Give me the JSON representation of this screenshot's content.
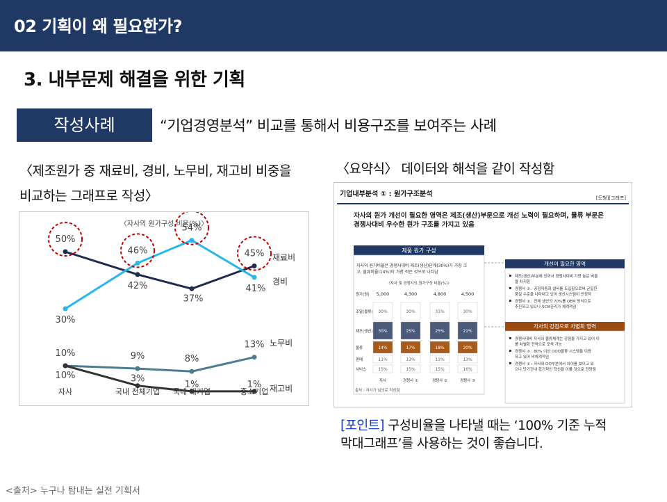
{
  "header": {
    "title": "02 기획이 왜 필요한가?"
  },
  "section_title": "3. 내부문제 해결을 위한 기획",
  "example": {
    "tag_label": "작성사례",
    "description": "“기업경영분석” 비교를 통해서 비용구조를 보여주는 사례"
  },
  "left": {
    "caption_line1": "〈제조원가 중 재료비, 경비, 노무비, 재고비 비중을",
    "caption_line2": "비교하는 그래프로 작성〉"
  },
  "right": {
    "caption": "〈요약식〉 데이터와 해석을 같이 작성함"
  },
  "chart_data": {
    "type": "line",
    "title": "〈자사의 원가구성 비율(%)〉",
    "categories": [
      "자사",
      "국내 전체기업",
      "국내 대기업",
      "중소기업"
    ],
    "series": [
      {
        "name": "재료비",
        "values": [
          50,
          42,
          37,
          45
        ],
        "color": "#1f2d4d",
        "point_labels": [
          "50%",
          "42%",
          "37%",
          "45%"
        ]
      },
      {
        "name": "경비",
        "values": [
          30,
          46,
          54,
          41
        ],
        "color": "#29b6e8",
        "point_labels": [
          "30%",
          "46%",
          "54%",
          "41%"
        ]
      },
      {
        "name": "노무비",
        "values": [
          10,
          9,
          8,
          13
        ],
        "color": "#4d7b8f",
        "point_labels": [
          "10%",
          "9%",
          "8%",
          "13%"
        ]
      },
      {
        "name": "재고비",
        "values": [
          10,
          3,
          1,
          1
        ],
        "color": "#333333",
        "point_labels": [
          "10%",
          "3%",
          "1%",
          "1%"
        ]
      }
    ],
    "highlight_color": "#c00000"
  },
  "doc": {
    "header_title": "기업내부분석 ① : 원가구조분석",
    "header_tag": "[도형][그래프]",
    "lead": "자사의 원가 개선이 필요한 영역은 제조(생산)부문으로 개선 노력이 필요하며, 물류 부문은 경쟁사대비 우수한 원가 구조를 가지고 있음",
    "panel_title": "제품 원가 구성",
    "panel_note": "자사의 원가비율은 경쟁사대비 제조(생산)단계(30%)가 가장 크고, 물류비율(14%)이 가장 적은 것으로 나타남",
    "chart_caption": "〈자사 및 경쟁사의 원가구성 비율(%)〉",
    "cost_row_label": "원가(원)",
    "costs": [
      "5,000",
      "4,300",
      "4,800",
      "4,500"
    ],
    "row_labels": [
      "조달(물류)",
      "제조(생산)",
      "물류",
      "판매",
      "서비스"
    ],
    "columns": [
      "자사",
      "경쟁사 ①",
      "경쟁사 ②",
      "경쟁사 ③"
    ],
    "stack_values": [
      [
        "30%",
        "30%",
        "31%",
        "30%"
      ],
      [
        "30%",
        "25%",
        "25%",
        "21%"
      ],
      [
        "14%",
        "17%",
        "18%",
        "20%"
      ],
      [
        "11%",
        "13%",
        "11%",
        "13%"
      ],
      [
        "15%",
        "15%",
        "15%",
        "16%"
      ]
    ],
    "source_note": "출처 : 자사가 임의로 작성함",
    "box1_title": "개선이 필요한 영역",
    "box1_items": [
      "제조(생산)부분에 있어서 경쟁사대비 가장 높은 비율을 차지함",
      "경쟁사 ③ : 공정자동화 설비를 도입함으로써 균일한 품질 수준을 나타내고 있어 생산시스템이 안정적",
      "경쟁사 ① : 전체 생산의 70%를 OEM 방식으로 추진하고 있으나 SCM관리가 체계적임"
    ],
    "box2_title": "자사의 강점으로 차별화 영역",
    "box2_items": [
      "경쟁사대비 자사의 물류체계는 강점을 가지고 있어 이를 차별화 전략으로 모색 가능",
      "경쟁사 ③ : 80% 이상 OOO물류 시스템을 이용하고 있어 비체계적임",
      "경쟁사 ① : 자사와 OO부분에서 차이를 보이고 있으나 단기간내 획기적인 혁신을 이룰 것으로 전망됨"
    ]
  },
  "point": {
    "label": "[포인트]",
    "text_line1": " 구성비율을 나타낼 때는 ‘100% 기준 누적",
    "text_line2": "막대그래프’를 사용하는 것이 좋습니다."
  },
  "source": "<출처> 누구나 탐내는 실전 기획서"
}
